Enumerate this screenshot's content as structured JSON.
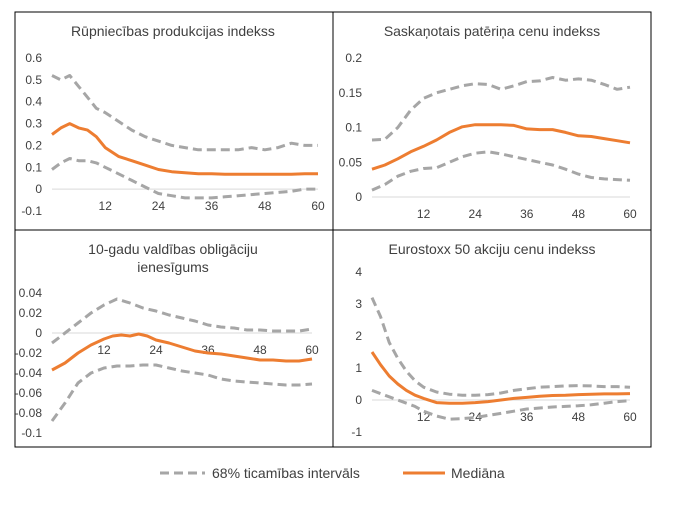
{
  "chart_data": [
    {
      "type": "line",
      "title": "Rūpniecības produkcijas indekss",
      "x_ticks": [
        "12",
        "24",
        "36",
        "48",
        "60"
      ],
      "y_ticks": [
        "0.6",
        "0.5",
        "0.4",
        "0.3",
        "0.2",
        "0.1",
        "0",
        "-0.1"
      ],
      "xlim": [
        0,
        60
      ],
      "ylim": [
        -0.1,
        0.6
      ],
      "grid": false,
      "series": [
        {
          "name": "68% ticamības intervāls",
          "role": "upper",
          "color": "#a6a6a6",
          "dash": true,
          "x": [
            0,
            2,
            4,
            6,
            8,
            10,
            12,
            15,
            18,
            21,
            24,
            27,
            30,
            33,
            36,
            39,
            42,
            45,
            48,
            51,
            54,
            57,
            60
          ],
          "y": [
            0.52,
            0.5,
            0.52,
            0.47,
            0.42,
            0.37,
            0.35,
            0.31,
            0.27,
            0.24,
            0.22,
            0.2,
            0.19,
            0.18,
            0.18,
            0.18,
            0.18,
            0.19,
            0.18,
            0.19,
            0.21,
            0.2,
            0.2
          ]
        },
        {
          "name": "Mediāna",
          "role": "median",
          "color": "#ed7d31",
          "dash": false,
          "x": [
            0,
            2,
            4,
            6,
            8,
            10,
            12,
            15,
            18,
            21,
            24,
            27,
            30,
            33,
            36,
            39,
            42,
            45,
            48,
            51,
            54,
            57,
            60
          ],
          "y": [
            0.25,
            0.28,
            0.3,
            0.28,
            0.27,
            0.24,
            0.19,
            0.15,
            0.13,
            0.11,
            0.09,
            0.08,
            0.075,
            0.07,
            0.07,
            0.068,
            0.068,
            0.068,
            0.068,
            0.068,
            0.068,
            0.07,
            0.07
          ]
        },
        {
          "name": "68% ticamības intervāls",
          "role": "lower",
          "color": "#a6a6a6",
          "dash": true,
          "x": [
            0,
            2,
            4,
            6,
            8,
            10,
            12,
            15,
            18,
            21,
            24,
            27,
            30,
            33,
            36,
            39,
            42,
            45,
            48,
            51,
            54,
            57,
            60
          ],
          "y": [
            0.09,
            0.12,
            0.14,
            0.13,
            0.13,
            0.12,
            0.1,
            0.07,
            0.04,
            0.01,
            -0.02,
            -0.03,
            -0.04,
            -0.04,
            -0.04,
            -0.035,
            -0.03,
            -0.025,
            -0.02,
            -0.015,
            -0.01,
            0.0,
            0.0
          ]
        }
      ]
    },
    {
      "type": "line",
      "title": "Saskaņotais patēriņa cenu indekss",
      "x_ticks": [
        "12",
        "24",
        "36",
        "48",
        "60"
      ],
      "y_ticks": [
        "0.2",
        "0.15",
        "0.1",
        "0.05",
        "0"
      ],
      "xlim": [
        0,
        60
      ],
      "ylim": [
        0,
        0.2
      ],
      "grid": false,
      "series": [
        {
          "name": "68% ticamības intervāls",
          "role": "upper",
          "color": "#a6a6a6",
          "dash": true,
          "x": [
            0,
            3,
            6,
            9,
            12,
            15,
            18,
            21,
            24,
            27,
            30,
            33,
            36,
            39,
            42,
            45,
            48,
            51,
            54,
            57,
            60
          ],
          "y": [
            0.082,
            0.083,
            0.1,
            0.125,
            0.142,
            0.15,
            0.155,
            0.16,
            0.163,
            0.162,
            0.155,
            0.16,
            0.166,
            0.167,
            0.172,
            0.168,
            0.17,
            0.168,
            0.162,
            0.155,
            0.158
          ]
        },
        {
          "name": "Mediāna",
          "role": "median",
          "color": "#ed7d31",
          "dash": false,
          "x": [
            0,
            3,
            6,
            9,
            12,
            15,
            18,
            21,
            24,
            27,
            30,
            33,
            36,
            39,
            42,
            45,
            48,
            51,
            54,
            57,
            60
          ],
          "y": [
            0.04,
            0.046,
            0.055,
            0.065,
            0.073,
            0.082,
            0.093,
            0.101,
            0.104,
            0.104,
            0.104,
            0.103,
            0.098,
            0.097,
            0.097,
            0.093,
            0.088,
            0.087,
            0.084,
            0.081,
            0.078
          ]
        },
        {
          "name": "68% ticamības intervāls",
          "role": "lower",
          "color": "#a6a6a6",
          "dash": true,
          "x": [
            0,
            3,
            6,
            9,
            12,
            15,
            18,
            21,
            24,
            27,
            30,
            33,
            36,
            39,
            42,
            45,
            48,
            51,
            54,
            57,
            60
          ],
          "y": [
            0.01,
            0.018,
            0.03,
            0.037,
            0.041,
            0.042,
            0.05,
            0.058,
            0.063,
            0.065,
            0.062,
            0.058,
            0.054,
            0.05,
            0.046,
            0.04,
            0.033,
            0.028,
            0.026,
            0.025,
            0.024
          ]
        }
      ]
    },
    {
      "type": "line",
      "title": "10-gadu valdības obligāciju ienesīgums",
      "title_lines": [
        "10-gadu valdības obligāciju",
        "ienesīgums"
      ],
      "x_ticks": [
        "12",
        "24",
        "36",
        "48",
        "60"
      ],
      "y_ticks": [
        "0.04",
        "0.02",
        "0",
        "-0.02",
        "-0.04",
        "-0.06",
        "-0.08",
        "-0.1"
      ],
      "xlim": [
        0,
        60
      ],
      "ylim": [
        -0.1,
        0.04
      ],
      "grid": false,
      "series": [
        {
          "name": "68% ticamības intervāls",
          "role": "upper",
          "color": "#a6a6a6",
          "dash": true,
          "x": [
            0,
            3,
            6,
            9,
            12,
            15,
            18,
            21,
            24,
            27,
            30,
            33,
            36,
            39,
            42,
            45,
            48,
            51,
            54,
            57,
            60
          ],
          "y": [
            -0.01,
            0.0,
            0.01,
            0.02,
            0.028,
            0.034,
            0.03,
            0.025,
            0.022,
            0.018,
            0.015,
            0.012,
            0.008,
            0.006,
            0.005,
            0.003,
            0.003,
            0.002,
            0.002,
            0.002,
            0.004
          ]
        },
        {
          "name": "Mediāna",
          "role": "median",
          "color": "#ed7d31",
          "dash": false,
          "x": [
            0,
            3,
            6,
            9,
            12,
            14,
            16,
            18,
            20,
            22,
            24,
            27,
            30,
            33,
            36,
            39,
            42,
            45,
            48,
            51,
            54,
            57,
            60
          ],
          "y": [
            -0.037,
            -0.03,
            -0.02,
            -0.012,
            -0.006,
            -0.003,
            -0.002,
            -0.003,
            -0.001,
            -0.003,
            -0.007,
            -0.01,
            -0.014,
            -0.018,
            -0.02,
            -0.021,
            -0.023,
            -0.025,
            -0.027,
            -0.027,
            -0.028,
            -0.028,
            -0.026
          ]
        },
        {
          "name": "68% ticamības intervāls",
          "role": "lower",
          "color": "#a6a6a6",
          "dash": true,
          "x": [
            0,
            3,
            6,
            9,
            12,
            15,
            18,
            21,
            24,
            27,
            30,
            33,
            36,
            39,
            42,
            45,
            48,
            51,
            54,
            57,
            60
          ],
          "y": [
            -0.088,
            -0.07,
            -0.05,
            -0.04,
            -0.035,
            -0.033,
            -0.033,
            -0.032,
            -0.032,
            -0.035,
            -0.038,
            -0.04,
            -0.042,
            -0.046,
            -0.048,
            -0.049,
            -0.05,
            -0.051,
            -0.052,
            -0.052,
            -0.051
          ]
        }
      ]
    },
    {
      "type": "line",
      "title": "Eurostoxx 50 akciju cenu indekss",
      "x_ticks": [
        "12",
        "24",
        "36",
        "48",
        "60"
      ],
      "y_ticks": [
        "4",
        "3",
        "2",
        "1",
        "0",
        "-1"
      ],
      "xlim": [
        0,
        60
      ],
      "ylim": [
        -1,
        4
      ],
      "grid": false,
      "series": [
        {
          "name": "68% ticamības intervāls",
          "role": "upper",
          "color": "#a6a6a6",
          "dash": true,
          "x": [
            0,
            2,
            4,
            6,
            8,
            10,
            12,
            15,
            18,
            21,
            24,
            27,
            30,
            33,
            36,
            39,
            42,
            45,
            48,
            51,
            54,
            57,
            60
          ],
          "y": [
            3.2,
            2.6,
            1.8,
            1.3,
            0.9,
            0.6,
            0.4,
            0.25,
            0.18,
            0.15,
            0.15,
            0.17,
            0.22,
            0.3,
            0.35,
            0.4,
            0.42,
            0.44,
            0.45,
            0.44,
            0.42,
            0.42,
            0.4
          ]
        },
        {
          "name": "Mediāna",
          "role": "median",
          "color": "#ed7d31",
          "dash": false,
          "x": [
            0,
            2,
            4,
            6,
            8,
            10,
            12,
            15,
            18,
            21,
            24,
            27,
            30,
            33,
            36,
            39,
            42,
            45,
            48,
            51,
            54,
            57,
            60
          ],
          "y": [
            1.5,
            1.1,
            0.75,
            0.5,
            0.3,
            0.15,
            0.05,
            -0.08,
            -0.1,
            -0.1,
            -0.08,
            -0.05,
            0.0,
            0.05,
            0.08,
            0.12,
            0.14,
            0.15,
            0.17,
            0.18,
            0.19,
            0.19,
            0.2
          ]
        },
        {
          "name": "68% ticamības intervāls",
          "role": "lower",
          "color": "#a6a6a6",
          "dash": true,
          "x": [
            0,
            2,
            4,
            6,
            8,
            10,
            12,
            15,
            18,
            21,
            24,
            27,
            30,
            33,
            36,
            39,
            42,
            45,
            48,
            51,
            54,
            57,
            60
          ],
          "y": [
            0.3,
            0.2,
            0.1,
            0.0,
            -0.1,
            -0.2,
            -0.35,
            -0.5,
            -0.6,
            -0.58,
            -0.55,
            -0.48,
            -0.42,
            -0.35,
            -0.28,
            -0.25,
            -0.22,
            -0.2,
            -0.18,
            -0.15,
            -0.1,
            -0.05,
            -0.02
          ]
        }
      ]
    }
  ],
  "legend": {
    "ci_label": "68% ticamības intervāls",
    "median_label": "Mediāna",
    "ci_color": "#a6a6a6",
    "median_color": "#ed7d31"
  }
}
